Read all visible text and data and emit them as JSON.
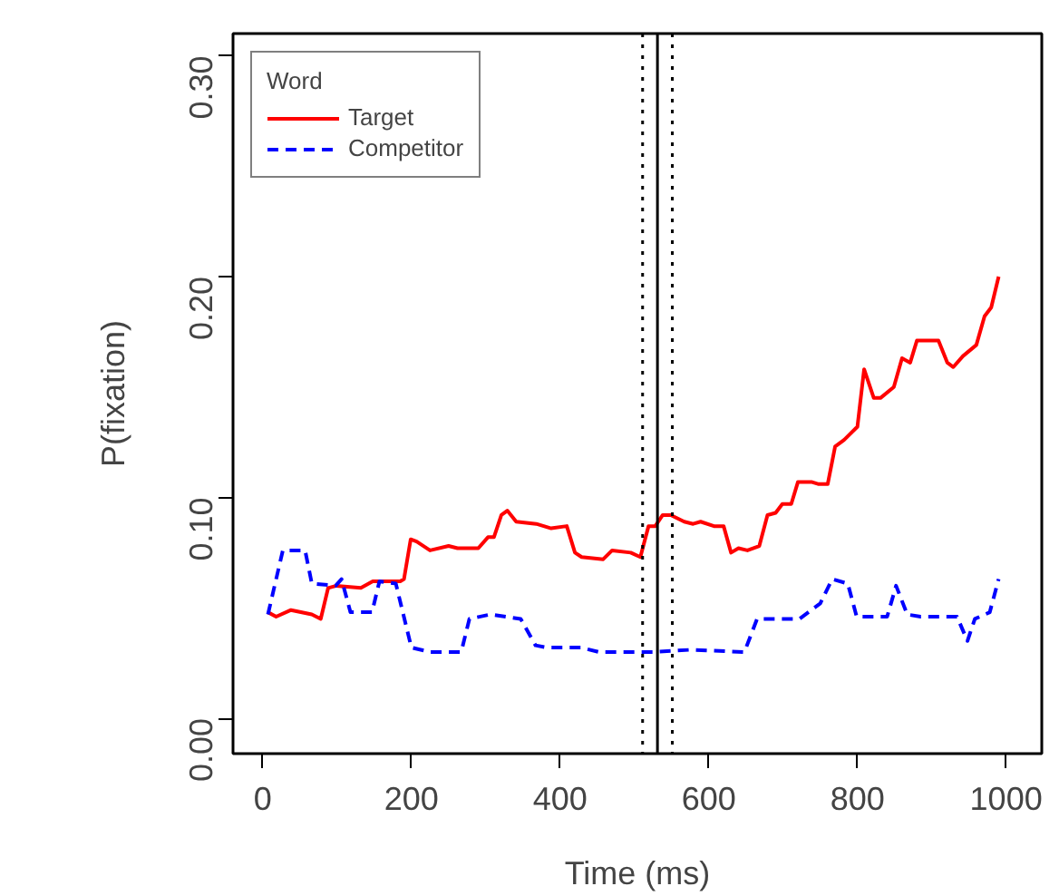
{
  "chart_data": {
    "type": "line",
    "xlabel": "Time (ms)",
    "ylabel": "P(fixation)",
    "legend_title": "Word",
    "legend": "top left",
    "grid": false,
    "xlim": [
      -40,
      1048
    ],
    "ylim": [
      -0.016,
      0.31
    ],
    "xticks": [
      0,
      200,
      400,
      600,
      800,
      1000
    ],
    "yticks": [
      {
        "value": 0,
        "label": "0.00"
      },
      {
        "value": 0.1,
        "label": "0.10"
      },
      {
        "value": 0.2,
        "label": "0.20"
      },
      {
        "value": 0.3,
        "label": "0.30"
      }
    ],
    "ref_lines": [
      {
        "axis": "x",
        "value": 511,
        "label": null,
        "color": "#000000",
        "line_style": "dotted"
      },
      {
        "axis": "x",
        "value": 531,
        "label": null,
        "color": "#000000",
        "line_style": "solid"
      },
      {
        "axis": "x",
        "value": 551,
        "label": null,
        "color": "#000000",
        "line_style": "dotted"
      }
    ],
    "series": [
      {
        "name": "Target",
        "color": "#ff0000",
        "line_style": "solid",
        "x": [
          7,
          18,
          38,
          66,
          78,
          88,
          99,
          132,
          148,
          185,
          190,
          199,
          207,
          225,
          250,
          262,
          282,
          290,
          303,
          311,
          321,
          329,
          341,
          368,
          388,
          409,
          420,
          429,
          458,
          470,
          495,
          508,
          519,
          528,
          538,
          549,
          567,
          579,
          589,
          607,
          620,
          630,
          640,
          652,
          668,
          679,
          690,
          699,
          711,
          720,
          738,
          748,
          760,
          770,
          782,
          800,
          809,
          822,
          831,
          849,
          860,
          871,
          880,
          909,
          921,
          929,
          942,
          960,
          971,
          980,
          990
        ],
        "values": [
          0.048,
          0.046,
          0.049,
          0.047,
          0.045,
          0.059,
          0.06,
          0.059,
          0.062,
          0.062,
          0.063,
          0.081,
          0.08,
          0.076,
          0.078,
          0.077,
          0.077,
          0.077,
          0.082,
          0.082,
          0.092,
          0.094,
          0.089,
          0.088,
          0.086,
          0.087,
          0.075,
          0.073,
          0.072,
          0.076,
          0.075,
          0.073,
          0.087,
          0.087,
          0.092,
          0.092,
          0.089,
          0.088,
          0.089,
          0.087,
          0.087,
          0.075,
          0.077,
          0.076,
          0.078,
          0.092,
          0.093,
          0.097,
          0.097,
          0.107,
          0.107,
          0.106,
          0.106,
          0.123,
          0.126,
          0.132,
          0.158,
          0.145,
          0.145,
          0.15,
          0.163,
          0.161,
          0.171,
          0.171,
          0.161,
          0.159,
          0.164,
          0.169,
          0.182,
          0.186,
          0.2
        ]
      },
      {
        "name": "Competitor",
        "color": "#0000ff",
        "line_style": "dashed",
        "x": [
          7,
          27,
          35,
          57,
          66,
          98,
          106,
          118,
          147,
          157,
          179,
          200,
          225,
          267,
          278,
          306,
          347,
          367,
          383,
          428,
          452,
          489,
          526,
          575,
          648,
          665,
          722,
          750,
          766,
          787,
          799,
          840,
          852,
          867,
          885,
          934,
          948,
          958,
          978,
          990
        ],
        "values": [
          0.047,
          0.076,
          0.076,
          0.076,
          0.061,
          0.06,
          0.063,
          0.048,
          0.048,
          0.062,
          0.061,
          0.032,
          0.03,
          0.03,
          0.045,
          0.047,
          0.045,
          0.033,
          0.032,
          0.032,
          0.03,
          0.03,
          0.03,
          0.031,
          0.03,
          0.045,
          0.045,
          0.052,
          0.063,
          0.061,
          0.046,
          0.046,
          0.06,
          0.047,
          0.046,
          0.046,
          0.035,
          0.045,
          0.048,
          0.063
        ]
      }
    ]
  }
}
